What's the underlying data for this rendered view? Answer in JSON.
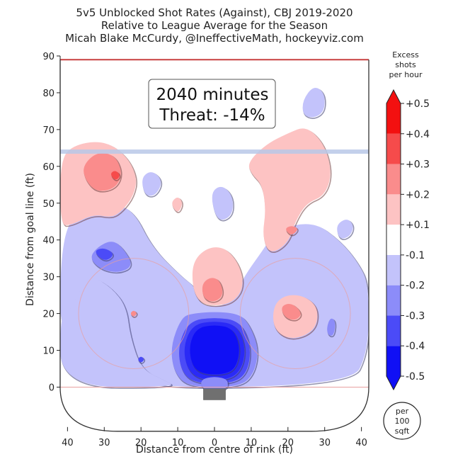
{
  "chart_data": {
    "type": "heatmap",
    "title_lines": [
      "5v5 Unblocked Shot Rates (Against), CBJ 2019-2020",
      "Relative to League Average for the Season",
      "Micah Blake McCurdy, @IneffectiveMath, hockeyviz.com"
    ],
    "xlabel": "Distance from centre of rink (ft)",
    "ylabel": "Distance from goal line (ft)",
    "xlim": [
      42,
      -42
    ],
    "ylim": [
      -13,
      90
    ],
    "x_ticks": [
      40,
      30,
      20,
      10,
      0,
      10,
      20,
      30,
      40
    ],
    "x_tick_values": [
      -40,
      -30,
      -20,
      -10,
      0,
      10,
      20,
      30,
      40
    ],
    "y_ticks": [
      0,
      10,
      20,
      30,
      40,
      50,
      60,
      70,
      80,
      90
    ],
    "annotation": {
      "line1": "2040 minutes",
      "line2": "Threat: -14%",
      "threat": -0.14,
      "minutes": 2040
    },
    "colorbar": {
      "title": [
        "Excess",
        "shots",
        "per hour"
      ],
      "units_badge": [
        "per",
        "100",
        "sqft"
      ],
      "levels": [
        -0.5,
        -0.4,
        -0.3,
        -0.2,
        -0.1,
        0.1,
        0.2,
        0.3,
        0.4,
        0.5
      ],
      "labels": [
        "-0.5",
        "-0.4",
        "-0.3",
        "-0.2",
        "-0.1",
        "+0.1",
        "+0.2",
        "+0.3",
        "+0.4",
        "+0.5"
      ],
      "band_colors": [
        "#1010f5",
        "#4b4bf7",
        "#8c8cf9",
        "#c3c3fb",
        "#ffffff",
        "#fdc3c3",
        "#fa8c8c",
        "#f64b4b",
        "#f31010"
      ]
    },
    "rink": {
      "blue_line_y": 64,
      "top_line_y": 89,
      "faceoff_circles": [
        {
          "x": -22,
          "y": 20,
          "r": 15
        },
        {
          "x": 22,
          "y": 20,
          "r": 15
        }
      ],
      "colors": {
        "boards": "#333333",
        "blue_line": "#b8c8e8",
        "red_line": "#e8a0a0",
        "net": "#707070"
      }
    },
    "regions": [
      {
        "level": -0.1,
        "points": [
          [
            -42,
            45
          ],
          [
            -33,
            47
          ],
          [
            -28,
            50
          ],
          [
            -22,
            48
          ],
          [
            -17,
            38
          ],
          [
            -9,
            30
          ],
          [
            -5,
            27
          ],
          [
            -4,
            22
          ],
          [
            4,
            22
          ],
          [
            8,
            30
          ],
          [
            13,
            37
          ],
          [
            17,
            43
          ],
          [
            27,
            45
          ],
          [
            34,
            40
          ],
          [
            39,
            34
          ],
          [
            42,
            28
          ],
          [
            42,
            10
          ],
          [
            37,
            0
          ],
          [
            -42,
            0
          ]
        ]
      },
      {
        "level": -0.1,
        "points": [
          [
            -42,
            20
          ],
          [
            -39,
            21
          ],
          [
            -37,
            26
          ],
          [
            -33,
            30
          ],
          [
            -28,
            27
          ],
          [
            -24,
            22
          ],
          [
            -23,
            14
          ],
          [
            -20,
            5
          ],
          [
            -14,
            2
          ],
          [
            -10,
            0
          ],
          [
            -42,
            0
          ]
        ]
      },
      {
        "level": -0.2,
        "points": [
          [
            -34,
            35
          ],
          [
            -32,
            38
          ],
          [
            -28,
            40
          ],
          [
            -25,
            38
          ],
          [
            -22,
            33
          ],
          [
            -26,
            31
          ],
          [
            -31,
            32
          ]
        ]
      },
      {
        "level": -0.3,
        "points": [
          [
            -33,
            37
          ],
          [
            -30,
            38
          ],
          [
            -27,
            36
          ],
          [
            -30,
            34
          ]
        ]
      },
      {
        "level": -0.2,
        "points": [
          [
            -9,
            19
          ],
          [
            -6,
            20
          ],
          [
            0,
            20.5
          ],
          [
            6,
            20
          ],
          [
            9,
            18
          ],
          [
            12,
            11
          ],
          [
            11,
            4
          ],
          [
            7,
            0
          ],
          [
            -7,
            0
          ],
          [
            -11,
            4
          ],
          [
            -12,
            11
          ]
        ]
      },
      {
        "level": -0.3,
        "points": [
          [
            -7,
            18
          ],
          [
            0,
            19
          ],
          [
            7,
            18
          ],
          [
            10,
            11
          ],
          [
            9,
            4
          ],
          [
            5,
            1
          ],
          [
            -5,
            1
          ],
          [
            -9,
            4
          ],
          [
            -10,
            11
          ]
        ]
      },
      {
        "level": -0.4,
        "points": [
          [
            -6,
            17
          ],
          [
            0,
            18
          ],
          [
            6,
            17
          ],
          [
            8.5,
            11
          ],
          [
            7.5,
            5
          ],
          [
            4,
            2
          ],
          [
            -4,
            2
          ],
          [
            -7.5,
            5
          ],
          [
            -8.5,
            11
          ]
        ]
      },
      {
        "level": -0.5,
        "points": [
          [
            -5,
            16
          ],
          [
            0,
            17
          ],
          [
            5,
            16
          ],
          [
            7,
            11
          ],
          [
            6,
            5.5
          ],
          [
            3,
            3.5
          ],
          [
            -3,
            3.5
          ],
          [
            -6,
            5.5
          ],
          [
            -7,
            11
          ]
        ]
      },
      {
        "level": -0.2,
        "points": [
          [
            -4,
            2
          ],
          [
            0,
            3
          ],
          [
            4,
            2
          ],
          [
            3,
            -1
          ],
          [
            -3,
            -1
          ]
        ]
      },
      {
        "level": 0.1,
        "points": [
          [
            -42,
            62
          ],
          [
            -38,
            66
          ],
          [
            -30,
            67
          ],
          [
            -24,
            63
          ],
          [
            -21,
            57
          ],
          [
            -22,
            52
          ],
          [
            -25,
            48
          ],
          [
            -28,
            46
          ],
          [
            -33,
            47
          ],
          [
            -39,
            44
          ],
          [
            -42,
            44
          ]
        ]
      },
      {
        "level": 0.2,
        "points": [
          [
            -36,
            60
          ],
          [
            -32,
            64
          ],
          [
            -27,
            63
          ],
          [
            -25,
            58
          ],
          [
            -27,
            54
          ],
          [
            -32,
            53
          ],
          [
            -35,
            56
          ]
        ]
      },
      {
        "level": 0.3,
        "points": [
          [
            -28.5,
            58
          ],
          [
            -27,
            59
          ],
          [
            -25.5,
            57.5
          ],
          [
            -27,
            56
          ]
        ]
      },
      {
        "level": 0.1,
        "points": [
          [
            9,
            61
          ],
          [
            14,
            66
          ],
          [
            20,
            69
          ],
          [
            25,
            71
          ],
          [
            30,
            66
          ],
          [
            32,
            58
          ],
          [
            30,
            52
          ],
          [
            25,
            50
          ],
          [
            22,
            45
          ],
          [
            20,
            39
          ],
          [
            15,
            36
          ],
          [
            13,
            41
          ],
          [
            14,
            48
          ],
          [
            13,
            55
          ],
          [
            10,
            58
          ]
        ]
      },
      {
        "level": 0.2,
        "points": [
          [
            19,
            43
          ],
          [
            21,
            44
          ],
          [
            23,
            43
          ],
          [
            21,
            41
          ]
        ]
      },
      {
        "level": 0.1,
        "points": [
          [
            16,
            22
          ],
          [
            19,
            25
          ],
          [
            24,
            25
          ],
          [
            28,
            22
          ],
          [
            28,
            17
          ],
          [
            25,
            14
          ],
          [
            20,
            13
          ],
          [
            16,
            16
          ]
        ]
      },
      {
        "level": 0.2,
        "points": [
          [
            18,
            22
          ],
          [
            21,
            23
          ],
          [
            24,
            20
          ],
          [
            22,
            18
          ],
          [
            19,
            19
          ]
        ]
      },
      {
        "level": 0.1,
        "points": [
          [
            -6,
            34
          ],
          [
            -2,
            38
          ],
          [
            3,
            38
          ],
          [
            7,
            33
          ],
          [
            8,
            27
          ],
          [
            5,
            23
          ],
          [
            0,
            22
          ],
          [
            -4,
            23
          ],
          [
            -6,
            27
          ]
        ]
      },
      {
        "level": 0.2,
        "points": [
          [
            -3.5,
            28
          ],
          [
            -1,
            30
          ],
          [
            1.5,
            29
          ],
          [
            2.5,
            25
          ],
          [
            0,
            23
          ],
          [
            -3,
            24
          ]
        ]
      },
      {
        "level": 0.1,
        "points": [
          [
            -12,
            50
          ],
          [
            -10,
            52
          ],
          [
            -8.5,
            50
          ],
          [
            -10,
            47
          ]
        ]
      },
      {
        "level": -0.1,
        "points": [
          [
            -20,
            57
          ],
          [
            -17,
            59
          ],
          [
            -14,
            56
          ],
          [
            -16,
            52
          ],
          [
            -19,
            52
          ]
        ]
      },
      {
        "level": -0.1,
        "points": [
          [
            -1,
            53
          ],
          [
            2,
            55
          ],
          [
            5,
            52
          ],
          [
            5,
            47
          ],
          [
            2,
            45
          ],
          [
            0,
            47
          ]
        ]
      },
      {
        "level": -0.1,
        "points": [
          [
            24,
            78
          ],
          [
            27,
            82
          ],
          [
            30,
            80
          ],
          [
            30,
            75
          ],
          [
            27,
            73
          ],
          [
            24,
            74
          ]
        ]
      },
      {
        "level": -0.1,
        "points": [
          [
            33,
            44
          ],
          [
            36,
            46
          ],
          [
            38,
            44
          ],
          [
            37,
            41
          ],
          [
            34,
            40
          ]
        ]
      },
      {
        "level": -0.2,
        "points": [
          [
            30.5,
            16
          ],
          [
            31.5,
            19
          ],
          [
            33,
            18
          ],
          [
            32.5,
            14
          ],
          [
            31,
            14
          ]
        ]
      },
      {
        "level": 0.2,
        "points": [
          [
            -23,
            20
          ],
          [
            -22,
            21
          ],
          [
            -21,
            20
          ],
          [
            -22,
            19
          ]
        ]
      },
      {
        "level": -0.3,
        "points": [
          [
            -21,
            7.5
          ],
          [
            -20,
            8.5
          ],
          [
            -19,
            7.5
          ],
          [
            -20,
            6.5
          ]
        ]
      }
    ]
  }
}
